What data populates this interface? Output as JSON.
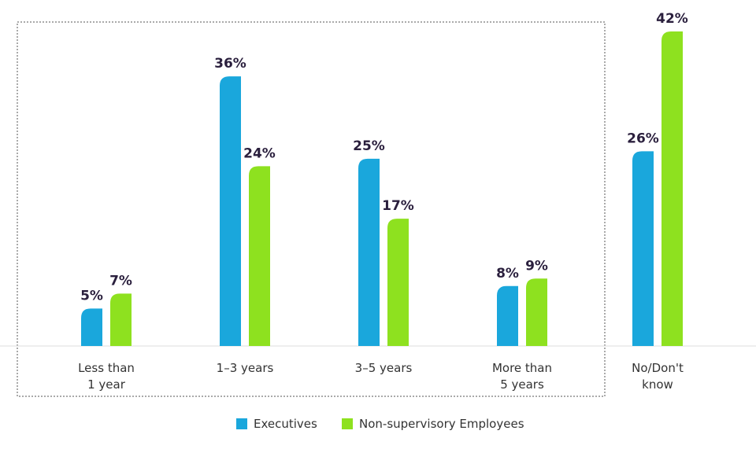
{
  "chart_data": {
    "type": "bar",
    "categories": [
      [
        "Less than",
        "1 year"
      ],
      [
        "1–3 years"
      ],
      [
        "3–5 years"
      ],
      [
        "More than",
        "5 years"
      ],
      [
        "No/Don't",
        "know"
      ]
    ],
    "series": [
      {
        "name": "Executives",
        "color": "#1aa7dc",
        "values": [
          5,
          36,
          25,
          8,
          26
        ],
        "labels": [
          "5%",
          "36%",
          "25%",
          "8%",
          "26%"
        ]
      },
      {
        "name": "Non-supervisory Employees",
        "color": "#8ee11f",
        "values": [
          7,
          24,
          17,
          9,
          42
        ],
        "labels": [
          "7%",
          "24%",
          "17%",
          "9%",
          "42%"
        ]
      }
    ],
    "ylim": [
      0,
      42
    ],
    "value_suffix": "%",
    "grouped_categories": [
      0,
      1,
      2,
      3
    ],
    "legend_position": "bottom-center",
    "grid": false
  }
}
